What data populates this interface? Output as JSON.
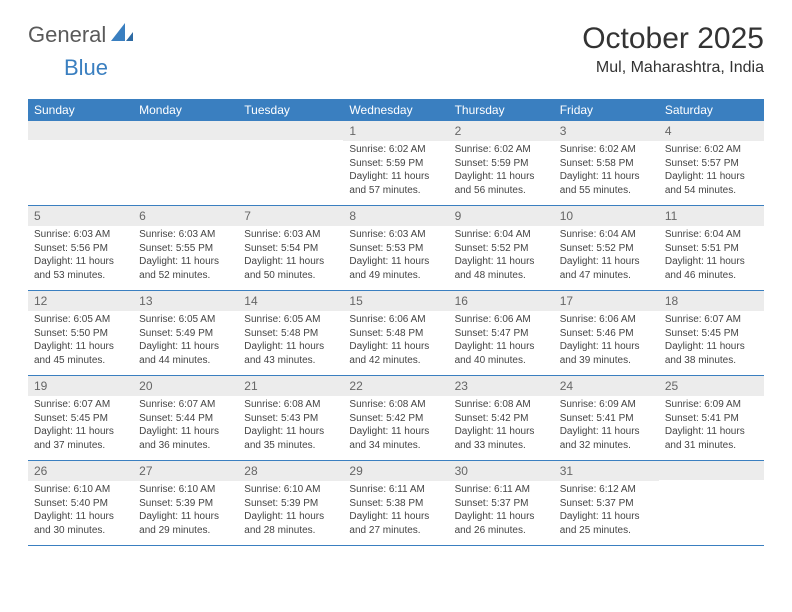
{
  "brand": {
    "word1": "General",
    "word2": "Blue"
  },
  "title": "October 2025",
  "location": "Mul, Maharashtra, India",
  "colors": {
    "accent": "#3a7fc0",
    "daynum_bg": "#ececec",
    "text": "#333333",
    "muted": "#666666",
    "background": "#ffffff"
  },
  "fonts": {
    "title_pt": 30,
    "location_pt": 16,
    "dow_pt": 12,
    "body_pt": 10
  },
  "days_of_week": [
    "Sunday",
    "Monday",
    "Tuesday",
    "Wednesday",
    "Thursday",
    "Friday",
    "Saturday"
  ],
  "weeks": [
    [
      {
        "n": "",
        "sunrise": "",
        "sunset": "",
        "daylight": ""
      },
      {
        "n": "",
        "sunrise": "",
        "sunset": "",
        "daylight": ""
      },
      {
        "n": "",
        "sunrise": "",
        "sunset": "",
        "daylight": ""
      },
      {
        "n": "1",
        "sunrise": "Sunrise: 6:02 AM",
        "sunset": "Sunset: 5:59 PM",
        "daylight": "Daylight: 11 hours and 57 minutes."
      },
      {
        "n": "2",
        "sunrise": "Sunrise: 6:02 AM",
        "sunset": "Sunset: 5:59 PM",
        "daylight": "Daylight: 11 hours and 56 minutes."
      },
      {
        "n": "3",
        "sunrise": "Sunrise: 6:02 AM",
        "sunset": "Sunset: 5:58 PM",
        "daylight": "Daylight: 11 hours and 55 minutes."
      },
      {
        "n": "4",
        "sunrise": "Sunrise: 6:02 AM",
        "sunset": "Sunset: 5:57 PM",
        "daylight": "Daylight: 11 hours and 54 minutes."
      }
    ],
    [
      {
        "n": "5",
        "sunrise": "Sunrise: 6:03 AM",
        "sunset": "Sunset: 5:56 PM",
        "daylight": "Daylight: 11 hours and 53 minutes."
      },
      {
        "n": "6",
        "sunrise": "Sunrise: 6:03 AM",
        "sunset": "Sunset: 5:55 PM",
        "daylight": "Daylight: 11 hours and 52 minutes."
      },
      {
        "n": "7",
        "sunrise": "Sunrise: 6:03 AM",
        "sunset": "Sunset: 5:54 PM",
        "daylight": "Daylight: 11 hours and 50 minutes."
      },
      {
        "n": "8",
        "sunrise": "Sunrise: 6:03 AM",
        "sunset": "Sunset: 5:53 PM",
        "daylight": "Daylight: 11 hours and 49 minutes."
      },
      {
        "n": "9",
        "sunrise": "Sunrise: 6:04 AM",
        "sunset": "Sunset: 5:52 PM",
        "daylight": "Daylight: 11 hours and 48 minutes."
      },
      {
        "n": "10",
        "sunrise": "Sunrise: 6:04 AM",
        "sunset": "Sunset: 5:52 PM",
        "daylight": "Daylight: 11 hours and 47 minutes."
      },
      {
        "n": "11",
        "sunrise": "Sunrise: 6:04 AM",
        "sunset": "Sunset: 5:51 PM",
        "daylight": "Daylight: 11 hours and 46 minutes."
      }
    ],
    [
      {
        "n": "12",
        "sunrise": "Sunrise: 6:05 AM",
        "sunset": "Sunset: 5:50 PM",
        "daylight": "Daylight: 11 hours and 45 minutes."
      },
      {
        "n": "13",
        "sunrise": "Sunrise: 6:05 AM",
        "sunset": "Sunset: 5:49 PM",
        "daylight": "Daylight: 11 hours and 44 minutes."
      },
      {
        "n": "14",
        "sunrise": "Sunrise: 6:05 AM",
        "sunset": "Sunset: 5:48 PM",
        "daylight": "Daylight: 11 hours and 43 minutes."
      },
      {
        "n": "15",
        "sunrise": "Sunrise: 6:06 AM",
        "sunset": "Sunset: 5:48 PM",
        "daylight": "Daylight: 11 hours and 42 minutes."
      },
      {
        "n": "16",
        "sunrise": "Sunrise: 6:06 AM",
        "sunset": "Sunset: 5:47 PM",
        "daylight": "Daylight: 11 hours and 40 minutes."
      },
      {
        "n": "17",
        "sunrise": "Sunrise: 6:06 AM",
        "sunset": "Sunset: 5:46 PM",
        "daylight": "Daylight: 11 hours and 39 minutes."
      },
      {
        "n": "18",
        "sunrise": "Sunrise: 6:07 AM",
        "sunset": "Sunset: 5:45 PM",
        "daylight": "Daylight: 11 hours and 38 minutes."
      }
    ],
    [
      {
        "n": "19",
        "sunrise": "Sunrise: 6:07 AM",
        "sunset": "Sunset: 5:45 PM",
        "daylight": "Daylight: 11 hours and 37 minutes."
      },
      {
        "n": "20",
        "sunrise": "Sunrise: 6:07 AM",
        "sunset": "Sunset: 5:44 PM",
        "daylight": "Daylight: 11 hours and 36 minutes."
      },
      {
        "n": "21",
        "sunrise": "Sunrise: 6:08 AM",
        "sunset": "Sunset: 5:43 PM",
        "daylight": "Daylight: 11 hours and 35 minutes."
      },
      {
        "n": "22",
        "sunrise": "Sunrise: 6:08 AM",
        "sunset": "Sunset: 5:42 PM",
        "daylight": "Daylight: 11 hours and 34 minutes."
      },
      {
        "n": "23",
        "sunrise": "Sunrise: 6:08 AM",
        "sunset": "Sunset: 5:42 PM",
        "daylight": "Daylight: 11 hours and 33 minutes."
      },
      {
        "n": "24",
        "sunrise": "Sunrise: 6:09 AM",
        "sunset": "Sunset: 5:41 PM",
        "daylight": "Daylight: 11 hours and 32 minutes."
      },
      {
        "n": "25",
        "sunrise": "Sunrise: 6:09 AM",
        "sunset": "Sunset: 5:41 PM",
        "daylight": "Daylight: 11 hours and 31 minutes."
      }
    ],
    [
      {
        "n": "26",
        "sunrise": "Sunrise: 6:10 AM",
        "sunset": "Sunset: 5:40 PM",
        "daylight": "Daylight: 11 hours and 30 minutes."
      },
      {
        "n": "27",
        "sunrise": "Sunrise: 6:10 AM",
        "sunset": "Sunset: 5:39 PM",
        "daylight": "Daylight: 11 hours and 29 minutes."
      },
      {
        "n": "28",
        "sunrise": "Sunrise: 6:10 AM",
        "sunset": "Sunset: 5:39 PM",
        "daylight": "Daylight: 11 hours and 28 minutes."
      },
      {
        "n": "29",
        "sunrise": "Sunrise: 6:11 AM",
        "sunset": "Sunset: 5:38 PM",
        "daylight": "Daylight: 11 hours and 27 minutes."
      },
      {
        "n": "30",
        "sunrise": "Sunrise: 6:11 AM",
        "sunset": "Sunset: 5:37 PM",
        "daylight": "Daylight: 11 hours and 26 minutes."
      },
      {
        "n": "31",
        "sunrise": "Sunrise: 6:12 AM",
        "sunset": "Sunset: 5:37 PM",
        "daylight": "Daylight: 11 hours and 25 minutes."
      },
      {
        "n": "",
        "sunrise": "",
        "sunset": "",
        "daylight": ""
      }
    ]
  ]
}
